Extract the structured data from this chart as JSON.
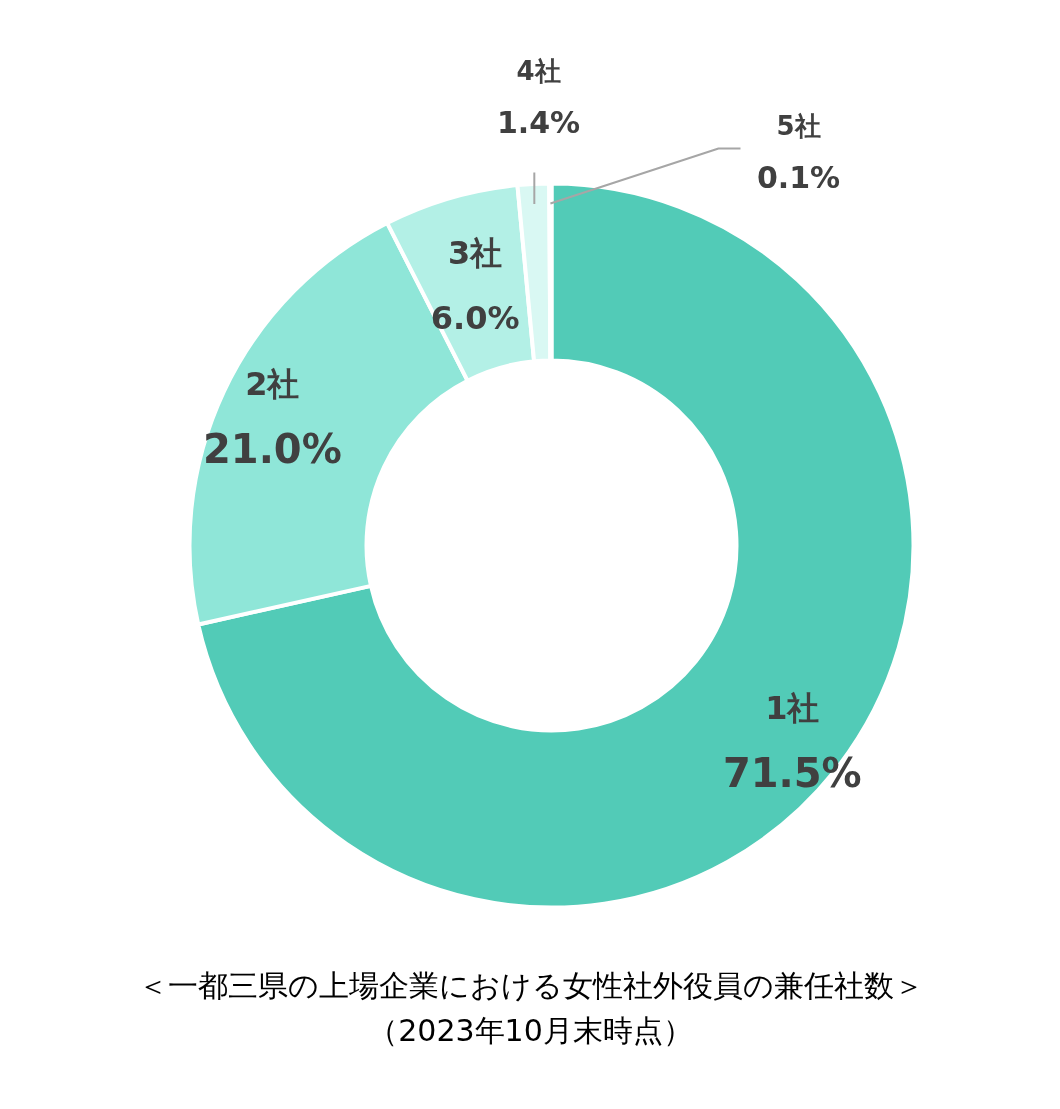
{
  "chart_data": {
    "type": "donut",
    "title": "＜一都三県の上場企業における女性社外役員の兼任社数＞",
    "subtitle": "（2023年10月末時点）",
    "categories": [
      "1社",
      "2社",
      "3社",
      "4社",
      "5社"
    ],
    "values": [
      71.5,
      21.0,
      6.0,
      1.4,
      0.1
    ],
    "colors": [
      "#52cbb7",
      "#8fe6d8",
      "#b3f0e6",
      "#d9f8f3",
      "#e6fbf8"
    ],
    "value_labels": [
      "71.5%",
      "21.0%",
      "6.0%",
      "1.4%",
      "0.1%"
    ]
  }
}
